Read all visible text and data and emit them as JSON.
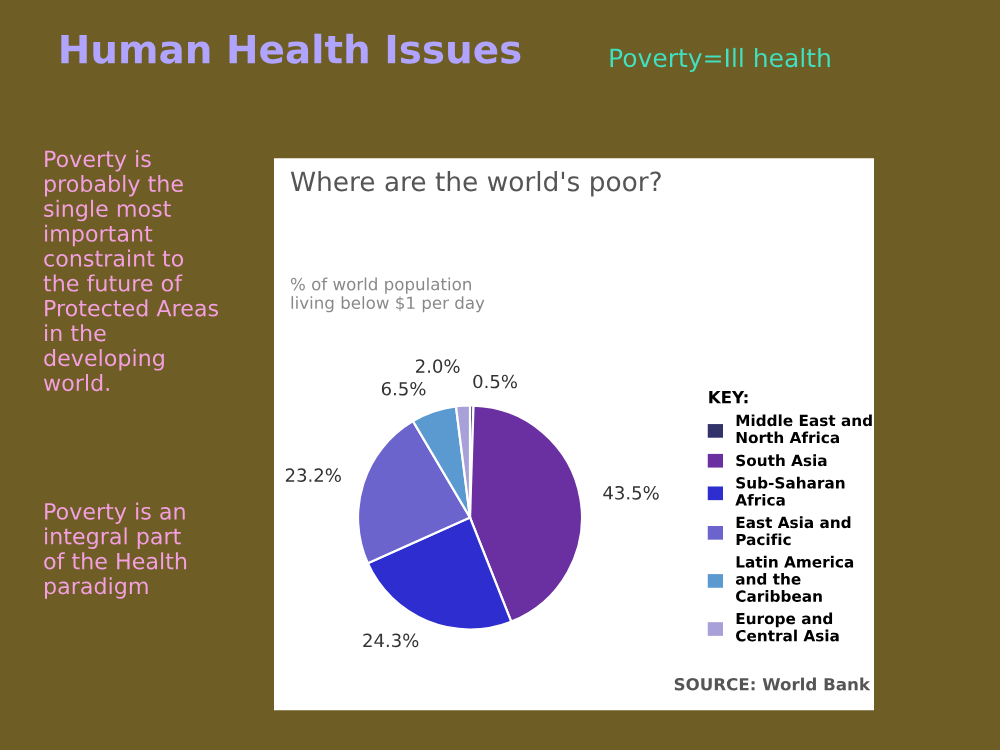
{
  "chart_data": {
    "type": "pie",
    "title": "Where are the world's poor?",
    "subtitle": "% of world population living below $1 per day",
    "legend_title": "KEY:",
    "categories": [
      "Middle East and North Africa",
      "South Asia",
      "Sub-Saharan Africa",
      "East Asia and Pacific",
      "Latin America and the Caribbean",
      "Europe and Central Asia"
    ],
    "values": [
      0.5,
      43.5,
      24.3,
      23.2,
      6.5,
      2.0
    ],
    "value_labels": [
      "0.5%",
      "43.5%",
      "24.3%",
      "23.2%",
      "6.5%",
      "2.0%"
    ],
    "colors": [
      "#33336b",
      "#6a2fa0",
      "#2d2dd0",
      "#6a64cc",
      "#5a9ad0",
      "#a8a0d8"
    ],
    "legend": "right",
    "annotations": [
      "Human Health Issues",
      "Poverty=Ill health",
      "Poverty is probably the single most important constraint to the future of Protected Areas in the developing world.",
      "Poverty is an integral part of the Health paradigm",
      "SOURCE: World Bank"
    ]
  }
}
